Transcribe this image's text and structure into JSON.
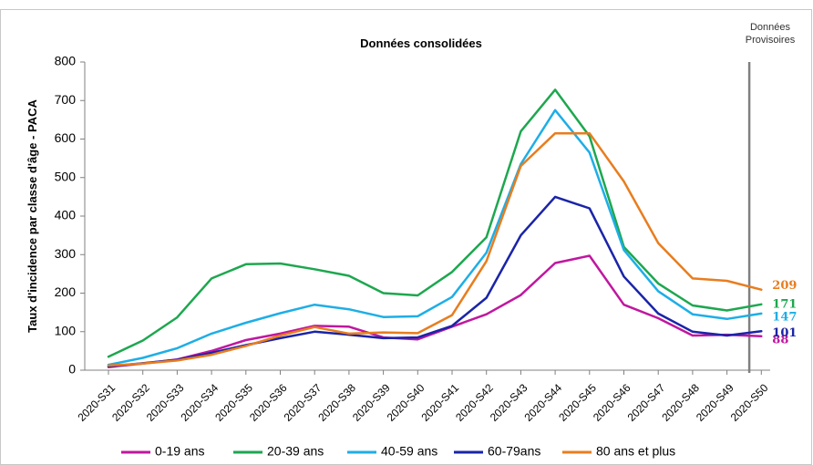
{
  "chart_data": {
    "type": "line",
    "title": "Données consolidées",
    "ylabel": "Taux d'incidence par classe d'âge - PACA",
    "xlabel": "",
    "ylim": [
      0,
      800
    ],
    "yticks": [
      0,
      100,
      200,
      300,
      400,
      500,
      600,
      700,
      800
    ],
    "grid": false,
    "legend_position": "bottom",
    "categories": [
      "2020-S31",
      "2020-S32",
      "2020-S33",
      "2020-S34",
      "2020-S35",
      "2020-S36",
      "2020-S37",
      "2020-S38",
      "2020-S39",
      "2020-S40",
      "2020-S41",
      "2020-S42",
      "2020-S43",
      "2020-S44",
      "2020-S45",
      "2020-S46",
      "2020-S47",
      "2020-S48",
      "2020-S49",
      "2020-S50"
    ],
    "marker": {
      "label_line1": "Données",
      "label_line2": "Provisoires",
      "after_category": "2020-S49"
    },
    "series": [
      {
        "name": "0-19 ans",
        "color": "#c0179f",
        "end_label": "88",
        "values": [
          8,
          17,
          28,
          50,
          78,
          95,
          115,
          113,
          85,
          80,
          113,
          145,
          195,
          278,
          297,
          170,
          135,
          90,
          92,
          88
        ]
      },
      {
        "name": "20-39 ans",
        "color": "#1da74f",
        "end_label": "171",
        "values": [
          35,
          77,
          137,
          238,
          275,
          277,
          262,
          245,
          200,
          194,
          255,
          345,
          620,
          728,
          607,
          320,
          225,
          168,
          155,
          171
        ]
      },
      {
        "name": "40-59 ans",
        "color": "#1eaee6",
        "end_label": "147",
        "values": [
          14,
          32,
          57,
          95,
          123,
          148,
          170,
          158,
          138,
          140,
          190,
          305,
          535,
          675,
          565,
          312,
          205,
          145,
          133,
          147
        ]
      },
      {
        "name": "60-79ans",
        "color": "#1a24a8",
        "end_label": "101",
        "values": [
          10,
          18,
          27,
          45,
          65,
          83,
          100,
          92,
          83,
          85,
          115,
          188,
          350,
          450,
          420,
          243,
          147,
          100,
          90,
          101
        ]
      },
      {
        "name": "80 ans et plus",
        "color": "#e87d1e",
        "end_label": "209",
        "values": [
          12,
          17,
          25,
          40,
          63,
          90,
          112,
          95,
          98,
          96,
          143,
          283,
          530,
          615,
          615,
          490,
          330,
          238,
          232,
          209
        ]
      }
    ]
  }
}
